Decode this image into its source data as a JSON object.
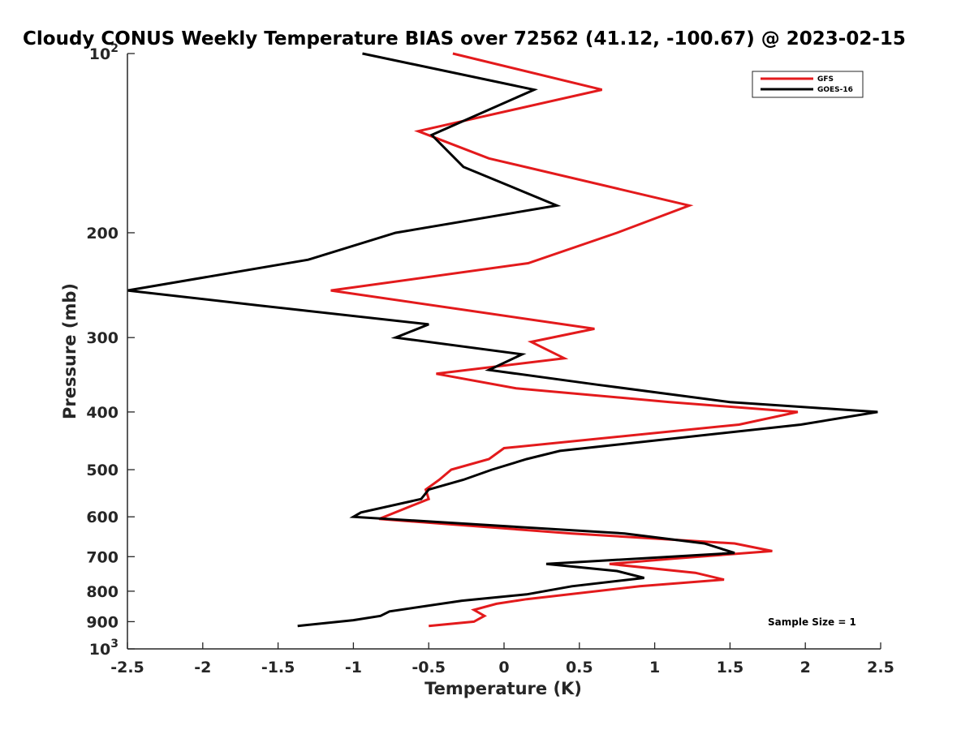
{
  "chart_data": {
    "type": "line",
    "title": "Cloudy CONUS Weekly Temperature BIAS over 72562 (41.12, -100.67) @ 2023-02-15",
    "xlabel": "Temperature (K)",
    "ylabel": "Pressure (mb)",
    "xlim": [
      -2.5,
      2.5
    ],
    "ylim": [
      100,
      1000
    ],
    "yscale": "log",
    "y_reversed": true,
    "x_ticks": [
      "-2.5",
      "-2",
      "-1.5",
      "-1",
      "-0.5",
      "0",
      "0.5",
      "1",
      "1.5",
      "2",
      "2.5"
    ],
    "y_ticks": [
      {
        "value": 100,
        "base": "10",
        "exp": "2"
      },
      {
        "value": 200,
        "label": "200"
      },
      {
        "value": 300,
        "label": "300"
      },
      {
        "value": 400,
        "label": "400"
      },
      {
        "value": 500,
        "label": "500"
      },
      {
        "value": 600,
        "label": "600"
      },
      {
        "value": 700,
        "label": "700"
      },
      {
        "value": 800,
        "label": "800"
      },
      {
        "value": 900,
        "label": "900"
      },
      {
        "value": 1000,
        "base": "10",
        "exp": "3"
      }
    ],
    "grid": false,
    "legend_position": "top-right",
    "annotation": "Sample Size = 1",
    "series": [
      {
        "name": "GFS",
        "color": "#e31a1c",
        "points": [
          [
            -0.34,
            100
          ],
          [
            0.65,
            115
          ],
          [
            -0.57,
            135
          ],
          [
            -0.1,
            150
          ],
          [
            1.23,
            180
          ],
          [
            0.75,
            200
          ],
          [
            0.16,
            225
          ],
          [
            -1.15,
            250
          ],
          [
            0.6,
            290
          ],
          [
            0.18,
            305
          ],
          [
            0.4,
            325
          ],
          [
            -0.45,
            345
          ],
          [
            0.08,
            365
          ],
          [
            1.1,
            385
          ],
          [
            1.95,
            400
          ],
          [
            1.56,
            420
          ],
          [
            0.0,
            460
          ],
          [
            -0.1,
            480
          ],
          [
            -0.35,
            500
          ],
          [
            -0.43,
            520
          ],
          [
            -0.52,
            540
          ],
          [
            -0.5,
            560
          ],
          [
            -0.83,
            605
          ],
          [
            0.45,
            640
          ],
          [
            1.53,
            665
          ],
          [
            1.78,
            685
          ],
          [
            1.13,
            705
          ],
          [
            0.7,
            720
          ],
          [
            1.27,
            745
          ],
          [
            1.46,
            765
          ],
          [
            0.9,
            785
          ],
          [
            0.15,
            825
          ],
          [
            -0.05,
            840
          ],
          [
            -0.2,
            860
          ],
          [
            -0.13,
            880
          ],
          [
            -0.2,
            900
          ],
          [
            -0.5,
            915
          ]
        ]
      },
      {
        "name": "GOES-16",
        "color": "#000000",
        "points": [
          [
            -0.94,
            100
          ],
          [
            0.2,
            115
          ],
          [
            -0.48,
            137
          ],
          [
            -0.27,
            155
          ],
          [
            0.35,
            180
          ],
          [
            -0.72,
            200
          ],
          [
            -1.3,
            222
          ],
          [
            -2.5,
            250
          ],
          [
            -1.62,
            265
          ],
          [
            -0.5,
            285
          ],
          [
            -0.72,
            300
          ],
          [
            0.12,
            320
          ],
          [
            -0.1,
            340
          ],
          [
            0.62,
            360
          ],
          [
            1.5,
            385
          ],
          [
            2.48,
            400
          ],
          [
            1.97,
            420
          ],
          [
            0.37,
            465
          ],
          [
            0.15,
            480
          ],
          [
            -0.08,
            500
          ],
          [
            -0.27,
            520
          ],
          [
            -0.5,
            540
          ],
          [
            -0.55,
            560
          ],
          [
            -0.95,
            590
          ],
          [
            -1.0,
            600
          ],
          [
            0.8,
            640
          ],
          [
            1.33,
            665
          ],
          [
            1.53,
            690
          ],
          [
            0.28,
            720
          ],
          [
            0.75,
            740
          ],
          [
            0.93,
            760
          ],
          [
            0.45,
            785
          ],
          [
            0.15,
            810
          ],
          [
            -0.28,
            830
          ],
          [
            -0.76,
            865
          ],
          [
            -0.82,
            880
          ],
          [
            -1.0,
            895
          ],
          [
            -1.37,
            915
          ]
        ]
      }
    ]
  }
}
